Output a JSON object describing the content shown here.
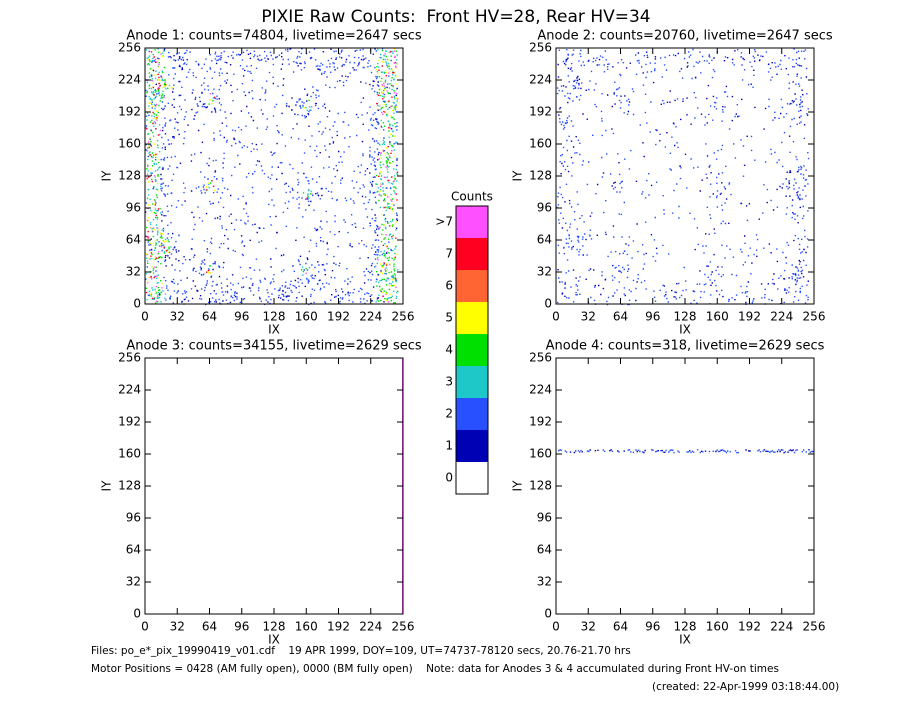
{
  "title": "PIXIE Raw Counts:  Front HV=28, Rear HV=34",
  "chart_data": [
    {
      "type": "heatmap",
      "title": "Anode 1: counts=74804, livetime=2647 secs",
      "xlabel": "IX",
      "ylabel": "IY",
      "xlim": [
        0,
        256
      ],
      "ylim": [
        0,
        256
      ],
      "xticks": [
        0,
        32,
        64,
        96,
        128,
        160,
        192,
        224,
        256
      ],
      "yticks": [
        0,
        32,
        64,
        96,
        128,
        160,
        192,
        224,
        256
      ]
    },
    {
      "type": "heatmap",
      "title": "Anode 2: counts=20760, livetime=2647 secs",
      "xlabel": "IX",
      "ylabel": "IY",
      "xlim": [
        0,
        256
      ],
      "ylim": [
        0,
        256
      ],
      "xticks": [
        0,
        32,
        64,
        96,
        128,
        160,
        192,
        224,
        256
      ],
      "yticks": [
        0,
        32,
        64,
        96,
        128,
        160,
        192,
        224,
        256
      ]
    },
    {
      "type": "heatmap",
      "title": "Anode 3: counts=34155, livetime=2629 secs",
      "xlabel": "IX",
      "ylabel": "IY",
      "xlim": [
        0,
        256
      ],
      "ylim": [
        0,
        256
      ],
      "xticks": [
        0,
        32,
        64,
        96,
        128,
        160,
        192,
        224,
        256
      ],
      "yticks": [
        0,
        32,
        64,
        96,
        128,
        160,
        192,
        224,
        256
      ]
    },
    {
      "type": "heatmap",
      "title": "Anode 4: counts=318, livetime=2629 secs",
      "xlabel": "IX",
      "ylabel": "IY",
      "xlim": [
        0,
        256
      ],
      "ylim": [
        0,
        256
      ],
      "xticks": [
        0,
        32,
        64,
        96,
        128,
        160,
        192,
        224,
        256
      ],
      "yticks": [
        0,
        32,
        64,
        96,
        128,
        160,
        192,
        224,
        256
      ]
    }
  ],
  "colorbar": {
    "title": "Counts",
    "ticks": [
      0,
      1,
      2,
      3,
      4,
      5,
      6,
      7,
      {
        "value": 8,
        "label": ">7"
      }
    ],
    "colors": [
      "#ffffff",
      "#0000b4",
      "#2850ff",
      "#1ec8c8",
      "#00e000",
      "#ffff00",
      "#ff6432",
      "#ff0020",
      "#ff50ff"
    ]
  },
  "footer": {
    "files": "Files: po_e*_pix_19990419_v01.cdf    19 APR 1999, DOY=109, UT=74737-78120 secs, 20.76-21.70 hrs",
    "motor": "Motor Positions = 0428 (AM fully open), 0000 (BM fully open)    Note: data for Anodes 3 & 4 accumulated during Front HV-on times",
    "created": "(created: 22-Apr-1999 03:18:44.00)"
  }
}
